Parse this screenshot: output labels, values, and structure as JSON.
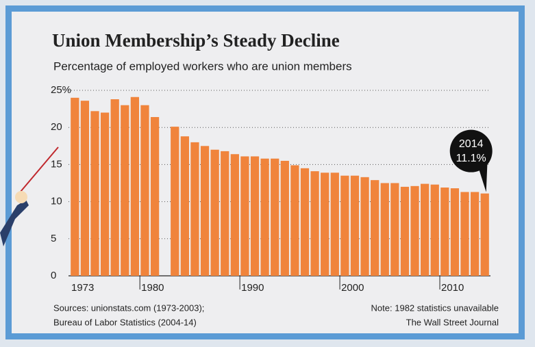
{
  "chart_data": {
    "type": "bar",
    "title": "Union Membership’s Steady Decline",
    "subtitle": "Percentage of employed workers who are union members",
    "categories": [
      "1973",
      null,
      null,
      null,
      null,
      null,
      null,
      "1980",
      null,
      null,
      null,
      null,
      null,
      null,
      null,
      null,
      null,
      "1990",
      null,
      null,
      null,
      null,
      null,
      null,
      null,
      null,
      null,
      "2000",
      null,
      null,
      null,
      null,
      null,
      null,
      null,
      null,
      null,
      "2010",
      null,
      null,
      null,
      "2014"
    ],
    "values": [
      24.0,
      23.6,
      22.2,
      22.0,
      23.8,
      23.0,
      24.1,
      23.0,
      21.4,
      null,
      20.1,
      18.8,
      18.0,
      17.5,
      17.0,
      16.8,
      16.4,
      16.1,
      16.1,
      15.8,
      15.8,
      15.5,
      14.9,
      14.5,
      14.1,
      13.9,
      13.9,
      13.5,
      13.5,
      13.3,
      12.9,
      12.5,
      12.5,
      12.0,
      12.1,
      12.4,
      12.3,
      11.9,
      11.8,
      11.3,
      11.3,
      11.1
    ],
    "value_labels": [
      null,
      null,
      null,
      null,
      null,
      null,
      null,
      null,
      null,
      null,
      null,
      null,
      null,
      null,
      null,
      null,
      null,
      null,
      null,
      null,
      null,
      null,
      null,
      null,
      null,
      null,
      null,
      null,
      null,
      null,
      null,
      null,
      null,
      null,
      null,
      null,
      null,
      null,
      null,
      null,
      null,
      "11.1%"
    ],
    "color": "#f0843c",
    "ylim": [
      0,
      25
    ],
    "yticks": [
      0,
      5,
      10,
      15,
      20,
      {
        "value": 25,
        "label": "25%"
      }
    ],
    "grid": true,
    "sources": [
      "Sources: unionstats.com (1973-2003);",
      "Bureau of Labor Statistics (2004-14)"
    ],
    "note": "Note: 1982 statistics unavailable",
    "credit": "The Wall Street Journal"
  }
}
